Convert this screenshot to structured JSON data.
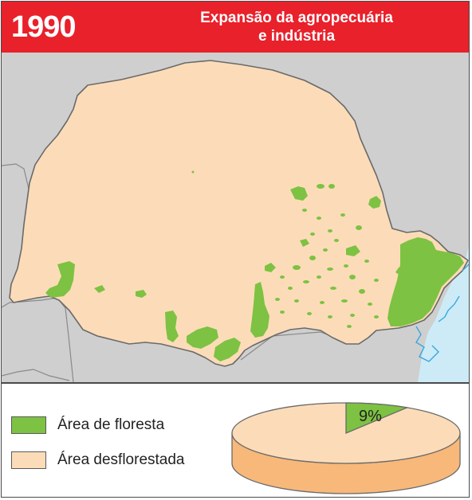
{
  "header": {
    "year": "1990",
    "title_line1": "Expansão da agropecuária",
    "title_line2": "e indústria"
  },
  "legend": {
    "forest_label": "Área de floresta",
    "deforested_label": "Área desflorestada"
  },
  "pie": {
    "forest_percent_label": "9%",
    "forest_fraction": 0.09
  },
  "colors": {
    "header_red": "#e8212b",
    "forest_green": "#7dc242",
    "deforested_peach": "#fcdcb8",
    "pie_side": "#f7b87a",
    "neighbor_gray": "#cfcfcf",
    "ocean_blue": "#cdebf7",
    "river_blue": "#3aa8dc"
  }
}
